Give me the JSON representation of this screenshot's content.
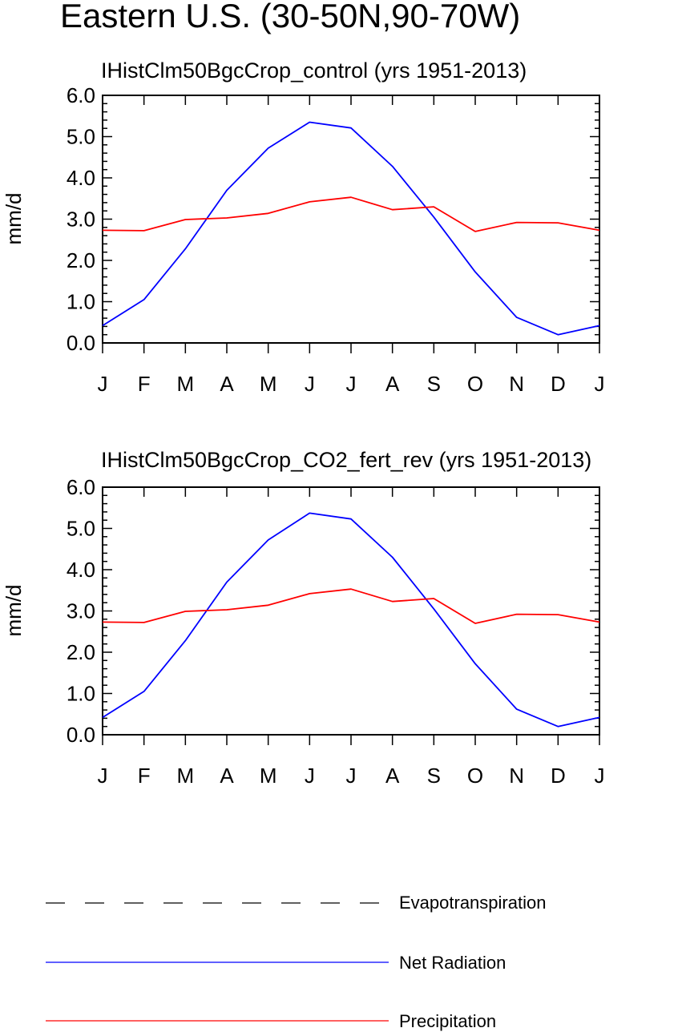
{
  "figure": {
    "title": "Eastern U.S. (30-50N,90-70W)"
  },
  "colors": {
    "net_radiation": "#0000ff",
    "precipitation": "#ff0000",
    "evapotranspiration": "#000000",
    "axes": "#000000",
    "background": "#ffffff"
  },
  "legend": {
    "placement": "bottom",
    "items": [
      {
        "label": "Evapotranspiration",
        "color": "#000000",
        "style": "dashed"
      },
      {
        "label": "Net Radiation",
        "color": "#0000ff",
        "style": "solid"
      },
      {
        "label": "Precipitation",
        "color": "#ff0000",
        "style": "solid"
      }
    ]
  },
  "chart_data": [
    {
      "type": "line",
      "title": "IHistClm50BgcCrop_control (yrs 1951-2013)",
      "xlabel": "",
      "ylabel": "mm/d",
      "categories": [
        "J",
        "F",
        "M",
        "A",
        "M",
        "J",
        "J",
        "A",
        "S",
        "O",
        "N",
        "D",
        "J"
      ],
      "ylim": [
        0,
        6
      ],
      "yticks": [
        "0.0",
        "1.0",
        "2.0",
        "3.0",
        "4.0",
        "5.0",
        "6.0"
      ],
      "grid": false,
      "series": [
        {
          "name": "Net Radiation",
          "color": "#0000ff",
          "style": "solid",
          "values": [
            0.42,
            1.05,
            2.28,
            3.7,
            4.72,
            5.35,
            5.21,
            4.28,
            3.05,
            1.72,
            0.62,
            0.2,
            0.42
          ]
        },
        {
          "name": "Precipitation",
          "color": "#ff0000",
          "style": "solid",
          "values": [
            2.73,
            2.72,
            2.99,
            3.03,
            3.14,
            3.42,
            3.53,
            3.23,
            3.3,
            2.7,
            2.92,
            2.91,
            2.73
          ]
        }
      ]
    },
    {
      "type": "line",
      "title": "IHistClm50BgcCrop_CO2_fert_rev (yrs 1951-2013)",
      "xlabel": "",
      "ylabel": "mm/d",
      "categories": [
        "J",
        "F",
        "M",
        "A",
        "M",
        "J",
        "J",
        "A",
        "S",
        "O",
        "N",
        "D",
        "J"
      ],
      "ylim": [
        0,
        6
      ],
      "yticks": [
        "0.0",
        "1.0",
        "2.0",
        "3.0",
        "4.0",
        "5.0",
        "6.0"
      ],
      "grid": false,
      "series": [
        {
          "name": "Net Radiation",
          "color": "#0000ff",
          "style": "solid",
          "values": [
            0.42,
            1.05,
            2.28,
            3.7,
            4.72,
            5.37,
            5.23,
            4.3,
            3.05,
            1.72,
            0.62,
            0.2,
            0.42
          ]
        },
        {
          "name": "Precipitation",
          "color": "#ff0000",
          "style": "solid",
          "values": [
            2.73,
            2.72,
            2.99,
            3.03,
            3.14,
            3.42,
            3.53,
            3.23,
            3.3,
            2.7,
            2.92,
            2.91,
            2.73
          ]
        }
      ]
    }
  ]
}
